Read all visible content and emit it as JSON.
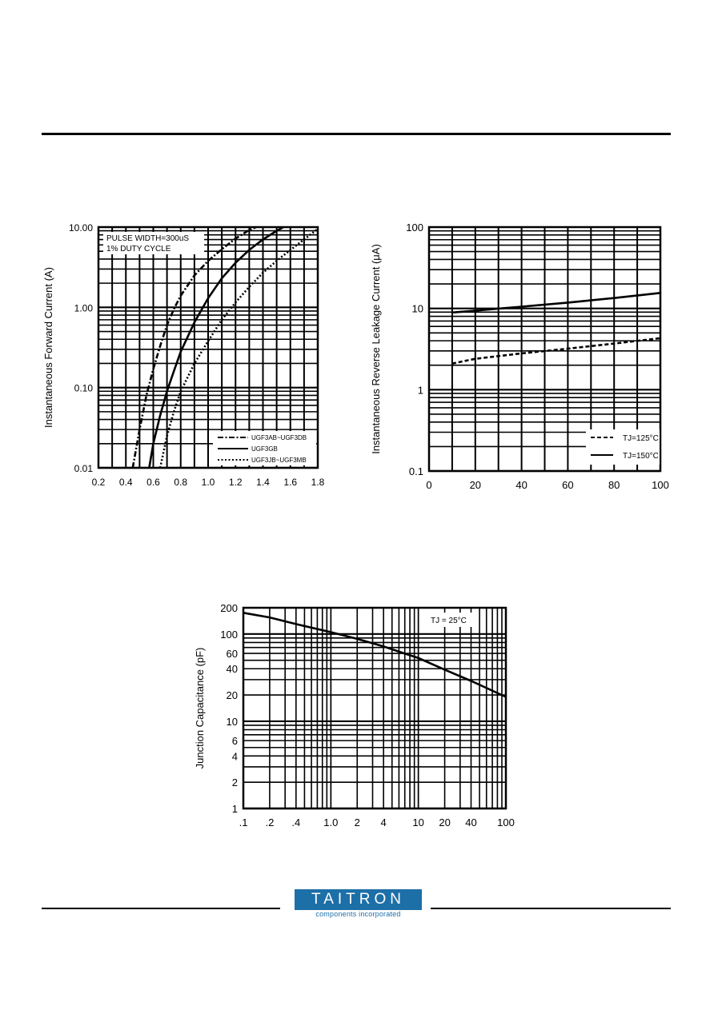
{
  "footer": {
    "logo": "TAITRON",
    "tagline": "components incorporated"
  },
  "chart_data": [
    {
      "type": "line",
      "ylabel": "Instantaneous Forward Current (A)",
      "xlabel": "",
      "xlim": [
        0.2,
        1.8
      ],
      "ylim": [
        0.01,
        10
      ],
      "y_scale": "log",
      "x_ticks": [
        "0.2",
        "0.4",
        "0.6",
        "0.8",
        "1.0",
        "1.2",
        "1.4",
        "1.6",
        "1.8"
      ],
      "y_ticks": [
        "0.01",
        "0.10",
        "1.00",
        "10.00"
      ],
      "annotation": [
        "PULSE WIDTH=300uS",
        "1% DUTY CYCLE"
      ],
      "legend_position": "bottom-right",
      "series": [
        {
          "name": "UGF3JB~UGF3MB",
          "style": "dotted",
          "x": [
            0.65,
            0.7,
            0.75,
            0.8,
            0.9,
            1.0,
            1.1,
            1.2,
            1.3,
            1.4,
            1.5,
            1.6,
            1.7,
            1.8
          ],
          "y": [
            0.01,
            0.025,
            0.05,
            0.09,
            0.2,
            0.38,
            0.7,
            1.15,
            1.8,
            2.7,
            3.8,
            5.2,
            7.0,
            9.5
          ]
        },
        {
          "name": "UGF3GB",
          "style": "solid",
          "x": [
            0.57,
            0.6,
            0.65,
            0.7,
            0.75,
            0.8,
            0.9,
            1.0,
            1.1,
            1.2,
            1.3,
            1.4,
            1.5,
            1.55
          ],
          "y": [
            0.01,
            0.02,
            0.045,
            0.09,
            0.16,
            0.28,
            0.65,
            1.3,
            2.3,
            3.6,
            5.2,
            7.0,
            9.0,
            10.0
          ]
        },
        {
          "name": "UGF3AB~UGF3DB",
          "style": "dashdot",
          "x": [
            0.45,
            0.5,
            0.55,
            0.6,
            0.65,
            0.7,
            0.75,
            0.8,
            0.9,
            1.0,
            1.1,
            1.2,
            1.3,
            1.35
          ],
          "y": [
            0.01,
            0.03,
            0.08,
            0.17,
            0.33,
            0.6,
            0.95,
            1.4,
            2.5,
            3.8,
            5.3,
            7.2,
            9.2,
            10.0
          ]
        }
      ]
    },
    {
      "type": "line",
      "ylabel": "Instantaneous Reverse Leakage Current (μA)",
      "xlabel": "",
      "xlim": [
        0,
        100
      ],
      "ylim": [
        0.1,
        100
      ],
      "y_scale": "log",
      "x_ticks": [
        "0",
        "20",
        "40",
        "60",
        "80",
        "100"
      ],
      "y_ticks": [
        "0.1",
        "1",
        "10",
        "100"
      ],
      "legend_position": "bottom-right",
      "series": [
        {
          "name": "TJ=125°C",
          "style": "dashed",
          "x": [
            10,
            20,
            40,
            60,
            80,
            100
          ],
          "y": [
            2.1,
            2.4,
            2.8,
            3.2,
            3.7,
            4.3
          ]
        },
        {
          "name": "TJ=150°C",
          "style": "solid",
          "x": [
            10,
            20,
            40,
            60,
            80,
            100
          ],
          "y": [
            8.9,
            9.4,
            10.5,
            11.8,
            13.4,
            15.5
          ]
        }
      ]
    },
    {
      "type": "line",
      "ylabel": "Junction Capacitance (pF)",
      "xlabel": "",
      "xlim": [
        0.1,
        100
      ],
      "ylim": [
        1,
        200
      ],
      "x_scale": "log",
      "y_scale": "log",
      "x_ticks": [
        ".1",
        ".2",
        ".4",
        "1.0",
        "2",
        "4",
        "10",
        "20",
        "40",
        "100"
      ],
      "y_ticks": [
        "1",
        "2",
        "4",
        "6",
        "10",
        "20",
        "40",
        "60",
        "100",
        "200"
      ],
      "annotation": "TJ = 25°C",
      "series": [
        {
          "name": "",
          "style": "solid",
          "x": [
            0.1,
            0.2,
            0.4,
            1,
            2,
            4,
            10,
            20,
            40,
            100
          ],
          "y": [
            175,
            155,
            130,
            105,
            88,
            72,
            53,
            39,
            29,
            19
          ]
        }
      ]
    }
  ]
}
